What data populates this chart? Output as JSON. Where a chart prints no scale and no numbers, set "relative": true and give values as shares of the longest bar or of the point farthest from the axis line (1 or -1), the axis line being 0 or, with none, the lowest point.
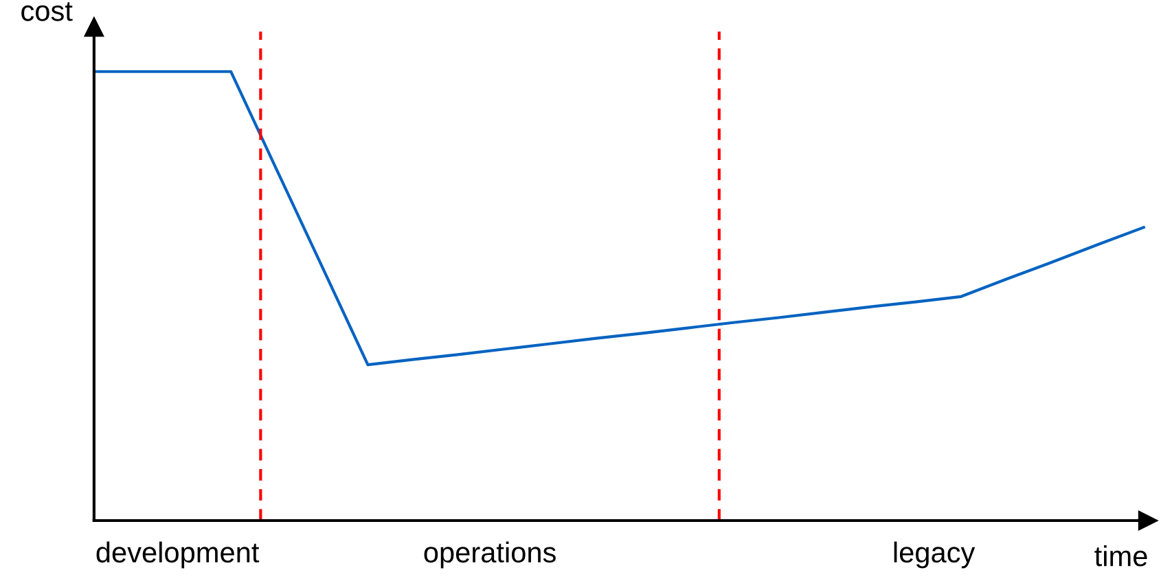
{
  "chart_data": {
    "type": "line",
    "relative": true,
    "xlabel": "time",
    "ylabel": "cost",
    "categories": [
      null,
      null,
      null,
      null,
      null,
      null,
      null,
      null,
      null,
      null,
      null,
      null,
      null,
      null,
      null,
      null,
      null,
      null,
      null,
      null,
      null,
      null,
      null,
      null
    ],
    "series": [
      {
        "color": "#0563c1",
        "values": [
          1,
          1,
          1,
          1,
          0.782,
          0.565,
          0.347,
          0.359,
          0.37,
          0.382,
          0.394,
          0.406,
          0.417,
          0.429,
          0.441,
          0.452,
          0.464,
          0.476,
          0.487,
          0.499,
          0.538,
          0.576,
          0.615,
          0.653
        ]
      }
    ],
    "annotations": [
      "development",
      "operations",
      "legacy"
    ],
    "grid": false,
    "legend": false,
    "marker": "none",
    "line_style": "solid"
  }
}
